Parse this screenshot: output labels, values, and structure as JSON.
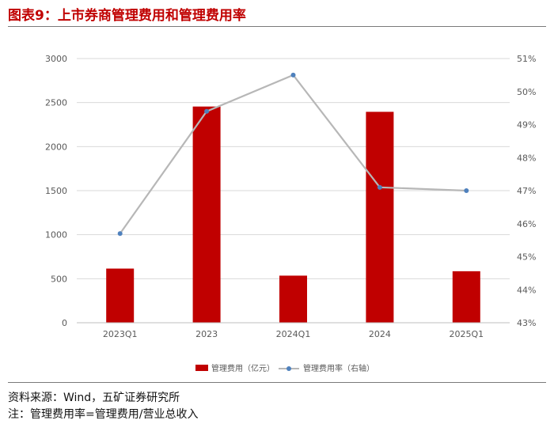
{
  "figure": {
    "title": "图表9：上市券商管理费用和管理费用率",
    "source": "资料来源：Wind，五矿证券研究所",
    "note": "注：管理费用率=管理费用/营业总收入"
  },
  "colors": {
    "bar": "#c00000",
    "line": "#b7b7b7",
    "marker": "#4f81bd",
    "grid": "#d9d9d9",
    "axis_text": "#595959"
  },
  "chart_data": {
    "type": "bar",
    "categories": [
      "2023Q1",
      "2023",
      "2024Q1",
      "2024",
      "2025Q1"
    ],
    "series": [
      {
        "name": "管理费用（亿元）",
        "type": "bar",
        "axis": "left",
        "values": [
          615,
          2455,
          535,
          2395,
          585
        ]
      },
      {
        "name": "管理费用率（右轴）",
        "type": "line",
        "axis": "right",
        "values": [
          45.7,
          49.4,
          50.5,
          47.1,
          47.0
        ]
      }
    ],
    "y_left": {
      "lim": [
        0,
        3000
      ],
      "ticks": [
        0,
        500,
        1000,
        1500,
        2000,
        2500,
        3000
      ],
      "tick_labels": [
        "0",
        "500",
        "1000",
        "1500",
        "2000",
        "2500",
        "3000"
      ]
    },
    "y_right": {
      "lim": [
        43,
        51
      ],
      "ticks": [
        43,
        44,
        45,
        46,
        47,
        48,
        49,
        50,
        51
      ],
      "tick_labels": [
        "43%",
        "44%",
        "45%",
        "46%",
        "47%",
        "48%",
        "49%",
        "50%",
        "51%"
      ]
    },
    "grid": true,
    "legend_position": "bottom"
  }
}
